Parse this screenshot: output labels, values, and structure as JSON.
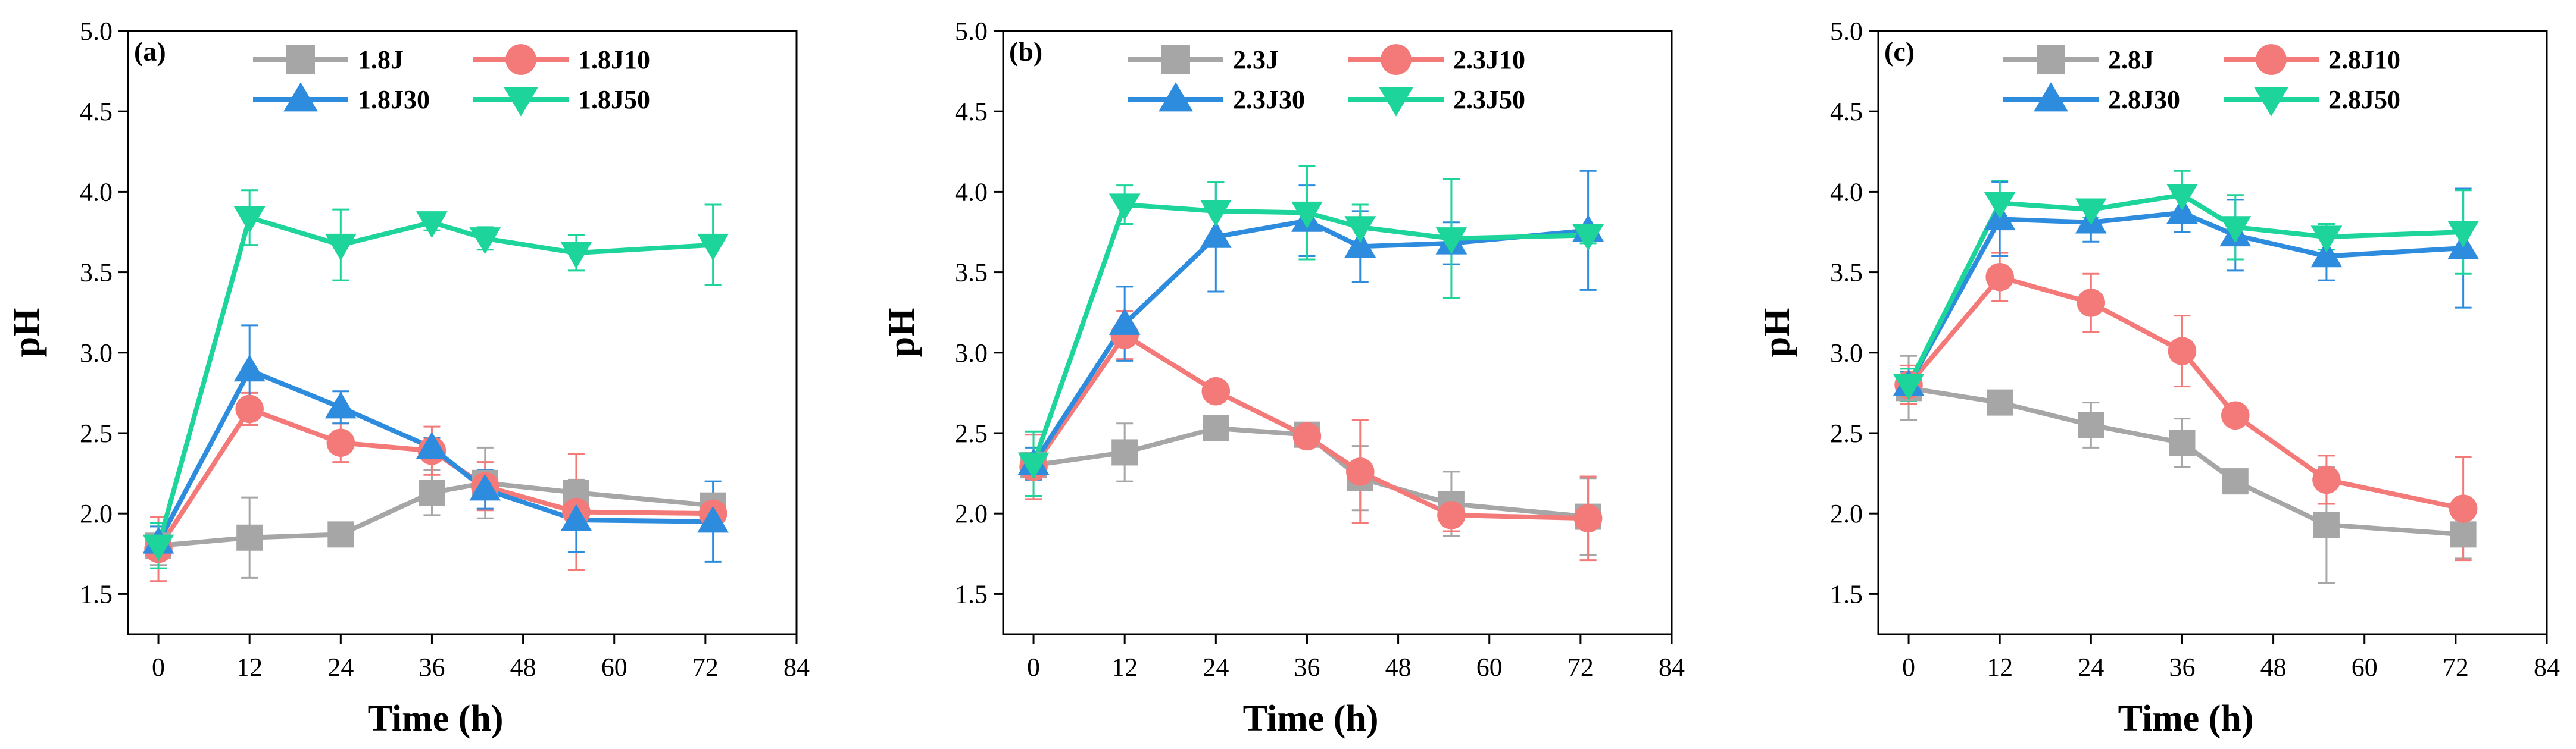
{
  "chart_data": [
    {
      "type": "line",
      "panel_label": "(a)",
      "xlabel": "Time (h)",
      "ylabel": "pH",
      "xlim": [
        -4,
        84
      ],
      "ylim": [
        1.25,
        5.0
      ],
      "xticks": [
        0,
        12,
        24,
        36,
        48,
        60,
        72,
        84
      ],
      "yticks": [
        1.5,
        2.0,
        2.5,
        3.0,
        3.5,
        4.0,
        4.5,
        5.0
      ],
      "xtick_labels": [
        "0",
        "12",
        "24",
        "36",
        "48",
        "60",
        "72",
        "84"
      ],
      "ytick_labels": [
        "1.5",
        "2.0",
        "2.5",
        "3.0",
        "3.5",
        "4.0",
        "4.5",
        "5.0"
      ],
      "legend_position": "top-center",
      "series": [
        {
          "name": "1.8J",
          "color": "#a6a6a6",
          "marker": "square",
          "x": [
            0,
            12,
            24,
            36,
            43,
            55,
            73
          ],
          "y": [
            1.8,
            1.85,
            1.87,
            2.13,
            2.19,
            2.13,
            2.05
          ],
          "err": [
            0.12,
            0.25,
            0.05,
            0.14,
            0.22,
            0.08,
            0.05
          ]
        },
        {
          "name": "1.8J10",
          "color": "#f47a7a",
          "marker": "circle",
          "x": [
            0,
            12,
            24,
            36,
            43,
            55,
            73
          ],
          "y": [
            1.78,
            2.65,
            2.44,
            2.39,
            2.17,
            2.01,
            2.0
          ],
          "err": [
            0.2,
            0.1,
            0.12,
            0.15,
            0.15,
            0.36,
            0.06
          ]
        },
        {
          "name": "1.8J30",
          "color": "#2e8cde",
          "marker": "triangle-up",
          "x": [
            0,
            12,
            24,
            36,
            43,
            55,
            73
          ],
          "y": [
            1.82,
            2.89,
            2.66,
            2.41,
            2.15,
            1.96,
            1.95
          ],
          "err": [
            0.1,
            0.28,
            0.1,
            0.06,
            0.12,
            0.2,
            0.25
          ]
        },
        {
          "name": "1.8J50",
          "color": "#1dd49a",
          "marker": "triangle-down",
          "x": [
            0,
            12,
            24,
            36,
            43,
            55,
            73
          ],
          "y": [
            1.8,
            3.84,
            3.67,
            3.81,
            3.71,
            3.62,
            3.67
          ],
          "err": [
            0.14,
            0.17,
            0.22,
            0.05,
            0.07,
            0.11,
            0.25
          ]
        }
      ]
    },
    {
      "type": "line",
      "panel_label": "(b)",
      "xlabel": "Time (h)",
      "ylabel": "pH",
      "xlim": [
        -4,
        84
      ],
      "ylim": [
        1.25,
        5.0
      ],
      "xticks": [
        0,
        12,
        24,
        36,
        48,
        60,
        72,
        84
      ],
      "yticks": [
        1.5,
        2.0,
        2.5,
        3.0,
        3.5,
        4.0,
        4.5,
        5.0
      ],
      "xtick_labels": [
        "0",
        "12",
        "24",
        "36",
        "48",
        "60",
        "72",
        "84"
      ],
      "ytick_labels": [
        "1.5",
        "2.0",
        "2.5",
        "3.0",
        "3.5",
        "4.0",
        "4.5",
        "5.0"
      ],
      "legend_position": "top-center",
      "series": [
        {
          "name": "2.3J",
          "color": "#a6a6a6",
          "marker": "square",
          "x": [
            0,
            12,
            24,
            36,
            43,
            55,
            73
          ],
          "y": [
            2.3,
            2.38,
            2.53,
            2.49,
            2.22,
            2.06,
            1.98
          ],
          "err": [
            0.08,
            0.18,
            0.06,
            0.05,
            0.2,
            0.2,
            0.24
          ]
        },
        {
          "name": "2.3J10",
          "color": "#f47a7a",
          "marker": "circle",
          "x": [
            0,
            12,
            24,
            36,
            43,
            55,
            73
          ],
          "y": [
            2.29,
            3.11,
            2.76,
            2.48,
            2.26,
            1.99,
            1.97
          ],
          "err": [
            0.2,
            0.15,
            0.05,
            0.05,
            0.32,
            0.1,
            0.26
          ]
        },
        {
          "name": "2.3J30",
          "color": "#2e8cde",
          "marker": "triangle-up",
          "x": [
            0,
            12,
            24,
            36,
            43,
            55,
            73
          ],
          "y": [
            2.31,
            3.18,
            3.72,
            3.82,
            3.66,
            3.68,
            3.76
          ],
          "err": [
            0.1,
            0.23,
            0.34,
            0.22,
            0.22,
            0.13,
            0.37
          ]
        },
        {
          "name": "2.3J50",
          "color": "#1dd49a",
          "marker": "triangle-down",
          "x": [
            0,
            12,
            24,
            36,
            43,
            55,
            73
          ],
          "y": [
            2.31,
            3.92,
            3.88,
            3.87,
            3.78,
            3.71,
            3.73
          ],
          "err": [
            0.2,
            0.12,
            0.18,
            0.29,
            0.14,
            0.37,
            0.05
          ]
        }
      ]
    },
    {
      "type": "line",
      "panel_label": "(c)",
      "xlabel": "Time (h)",
      "ylabel": "pH",
      "xlim": [
        -4,
        84
      ],
      "ylim": [
        1.25,
        5.0
      ],
      "xticks": [
        0,
        12,
        24,
        36,
        48,
        60,
        72,
        84
      ],
      "yticks": [
        1.5,
        2.0,
        2.5,
        3.0,
        3.5,
        4.0,
        4.5,
        5.0
      ],
      "xtick_labels": [
        "0",
        "12",
        "24",
        "36",
        "48",
        "60",
        "72",
        "84"
      ],
      "ytick_labels": [
        "1.5",
        "2.0",
        "2.5",
        "3.0",
        "3.5",
        "4.0",
        "4.5",
        "5.0"
      ],
      "legend_position": "top-center",
      "series": [
        {
          "name": "2.8J",
          "color": "#a6a6a6",
          "marker": "square",
          "x": [
            0,
            12,
            24,
            36,
            43,
            55,
            73
          ],
          "y": [
            2.78,
            2.69,
            2.55,
            2.44,
            2.2,
            1.93,
            1.87
          ],
          "err": [
            0.2,
            0.06,
            0.14,
            0.15,
            0.06,
            0.36,
            0.15
          ]
        },
        {
          "name": "2.8J10",
          "color": "#f47a7a",
          "marker": "circle",
          "x": [
            0,
            12,
            24,
            36,
            43,
            55,
            73
          ],
          "y": [
            2.8,
            3.47,
            3.31,
            3.01,
            2.61,
            2.21,
            2.03
          ],
          "err": [
            0.12,
            0.15,
            0.18,
            0.22,
            0.05,
            0.15,
            0.32
          ]
        },
        {
          "name": "2.8J30",
          "color": "#2e8cde",
          "marker": "triangle-up",
          "x": [
            0,
            12,
            24,
            36,
            43,
            55,
            73
          ],
          "y": [
            2.8,
            3.83,
            3.81,
            3.87,
            3.73,
            3.6,
            3.65
          ],
          "err": [
            0.08,
            0.23,
            0.12,
            0.12,
            0.22,
            0.15,
            0.37
          ]
        },
        {
          "name": "2.8J50",
          "color": "#1dd49a",
          "marker": "triangle-down",
          "x": [
            0,
            12,
            24,
            36,
            43,
            55,
            73
          ],
          "y": [
            2.8,
            3.93,
            3.89,
            3.98,
            3.78,
            3.72,
            3.75
          ],
          "err": [
            0.1,
            0.14,
            0.05,
            0.15,
            0.2,
            0.08,
            0.26
          ]
        }
      ]
    }
  ]
}
